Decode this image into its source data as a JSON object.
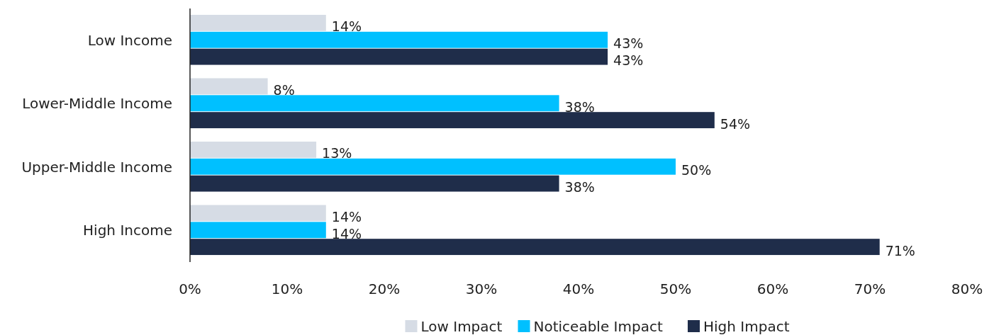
{
  "chart_data": {
    "type": "bar",
    "orientation": "horizontal",
    "categories": [
      "Low Income",
      "Lower-Middle Income",
      "Upper-Middle Income",
      "High Income"
    ],
    "series": [
      {
        "name": "Low Impact",
        "color": "#d6dce5",
        "values": [
          14,
          8,
          13,
          14
        ],
        "value_labels": [
          "14%",
          "8%",
          "13%",
          "14%"
        ]
      },
      {
        "name": "Noticeable Impact",
        "color": "#00c0ff",
        "values": [
          43,
          38,
          50,
          14
        ],
        "value_labels": [
          "43%",
          "38%",
          "50%",
          "14%"
        ]
      },
      {
        "name": "High Impact",
        "color": "#1f2d4a",
        "values": [
          43,
          54,
          38,
          71
        ],
        "value_labels": [
          "43%",
          "54%",
          "38%",
          "71%"
        ]
      }
    ],
    "xlim": [
      0,
      80
    ],
    "xticks": [
      {
        "value": 0,
        "label": "0%"
      },
      {
        "value": 10,
        "label": "10%"
      },
      {
        "value": 20,
        "label": "20%"
      },
      {
        "value": 30,
        "label": "30%"
      },
      {
        "value": 40,
        "label": "40%"
      },
      {
        "value": 50,
        "label": "50%"
      },
      {
        "value": 60,
        "label": "60%"
      },
      {
        "value": 70,
        "label": "70%"
      },
      {
        "value": 80,
        "label": "80%"
      }
    ],
    "grid": false,
    "legend": "bottom"
  }
}
